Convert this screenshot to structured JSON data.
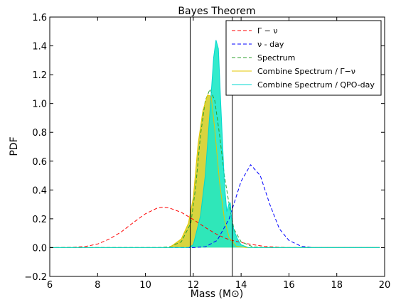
{
  "chart_data": {
    "type": "line",
    "title": "Bayes Theorem",
    "xlabel": "Mass (M⊙)",
    "ylabel": "PDF",
    "xlim": [
      6,
      20
    ],
    "ylim": [
      -0.2,
      1.6
    ],
    "x_ticks": [
      "6",
      "8",
      "10",
      "12",
      "14",
      "16",
      "18",
      "20"
    ],
    "y_ticks": [
      "−0.2",
      "0.0",
      "0.2",
      "0.4",
      "0.6",
      "0.8",
      "1.0",
      "1.2",
      "1.4",
      "1.6"
    ],
    "grid": false,
    "legend_position": "top-right",
    "vertical_lines": [
      11.87,
      13.63
    ],
    "series": [
      {
        "name": "Γ − ν",
        "style": "dashed",
        "color": "#ff0000",
        "points": [
          [
            6.5,
            0.0
          ],
          [
            7.0,
            0.002
          ],
          [
            7.5,
            0.008
          ],
          [
            8.0,
            0.025
          ],
          [
            8.5,
            0.06
          ],
          [
            9.0,
            0.11
          ],
          [
            9.5,
            0.175
          ],
          [
            10.0,
            0.235
          ],
          [
            10.5,
            0.275
          ],
          [
            10.7,
            0.28
          ],
          [
            11.0,
            0.275
          ],
          [
            11.5,
            0.245
          ],
          [
            12.0,
            0.195
          ],
          [
            12.5,
            0.14
          ],
          [
            13.0,
            0.09
          ],
          [
            13.5,
            0.055
          ],
          [
            14.0,
            0.035
          ],
          [
            14.5,
            0.02
          ],
          [
            15.0,
            0.008
          ],
          [
            15.5,
            0.003
          ],
          [
            16.0,
            0.0
          ],
          [
            19.8,
            0.0
          ]
        ]
      },
      {
        "name": "ν - day",
        "style": "dashed",
        "color": "#0000ff",
        "points": [
          [
            6.0,
            0.0
          ],
          [
            12.0,
            0.0
          ],
          [
            12.5,
            0.005
          ],
          [
            13.0,
            0.05
          ],
          [
            13.5,
            0.2
          ],
          [
            14.0,
            0.46
          ],
          [
            14.4,
            0.575
          ],
          [
            14.8,
            0.5
          ],
          [
            15.2,
            0.3
          ],
          [
            15.6,
            0.13
          ],
          [
            16.0,
            0.05
          ],
          [
            16.5,
            0.01
          ],
          [
            17.0,
            0.0
          ],
          [
            19.8,
            0.0
          ]
        ]
      },
      {
        "name": "Spectrum",
        "style": "dashed",
        "color": "#2ca02c",
        "points": [
          [
            6.0,
            0.0
          ],
          [
            10.5,
            0.0
          ],
          [
            11.0,
            0.005
          ],
          [
            11.5,
            0.04
          ],
          [
            11.9,
            0.17
          ],
          [
            12.1,
            0.42
          ],
          [
            12.3,
            0.78
          ],
          [
            12.5,
            1.02
          ],
          [
            12.7,
            1.1
          ],
          [
            12.9,
            1.02
          ],
          [
            13.1,
            0.78
          ],
          [
            13.3,
            0.5
          ],
          [
            13.5,
            0.3
          ],
          [
            13.7,
            0.13
          ],
          [
            14.0,
            0.04
          ],
          [
            14.5,
            0.005
          ],
          [
            15.0,
            0.0
          ],
          [
            19.8,
            0.0
          ]
        ]
      },
      {
        "name": "Combine Spectrum / Γ−ν",
        "style": "solid",
        "color": "#e5c700",
        "fill": "#d4cf2a",
        "points": [
          [
            6.0,
            0.0
          ],
          [
            11.0,
            0.0
          ],
          [
            11.5,
            0.06
          ],
          [
            11.8,
            0.17
          ],
          [
            12.0,
            0.35
          ],
          [
            12.2,
            0.72
          ],
          [
            12.4,
            0.95
          ],
          [
            12.6,
            1.06
          ],
          [
            12.75,
            1.05
          ],
          [
            12.9,
            0.82
          ],
          [
            13.1,
            0.45
          ],
          [
            13.3,
            0.2
          ],
          [
            13.5,
            0.07
          ],
          [
            13.8,
            0.01
          ],
          [
            14.2,
            0.0
          ],
          [
            19.8,
            0.0
          ]
        ]
      },
      {
        "name": "Combine Spectrum / QPO-day",
        "style": "solid",
        "color": "#00d7d0",
        "fill": "#1de9c6",
        "points": [
          [
            6.0,
            0.0
          ],
          [
            11.8,
            0.0
          ],
          [
            12.0,
            0.02
          ],
          [
            12.3,
            0.22
          ],
          [
            12.5,
            0.5
          ],
          [
            12.7,
            0.95
          ],
          [
            12.85,
            1.32
          ],
          [
            12.95,
            1.44
          ],
          [
            13.05,
            1.38
          ],
          [
            13.15,
            1.0
          ],
          [
            13.3,
            0.45
          ],
          [
            13.4,
            0.25
          ],
          [
            13.5,
            0.31
          ],
          [
            13.55,
            0.31
          ],
          [
            13.6,
            0.2
          ],
          [
            13.7,
            0.12
          ],
          [
            13.85,
            0.06
          ],
          [
            14.0,
            0.02
          ],
          [
            14.3,
            0.0
          ],
          [
            19.8,
            0.0
          ]
        ]
      }
    ]
  }
}
